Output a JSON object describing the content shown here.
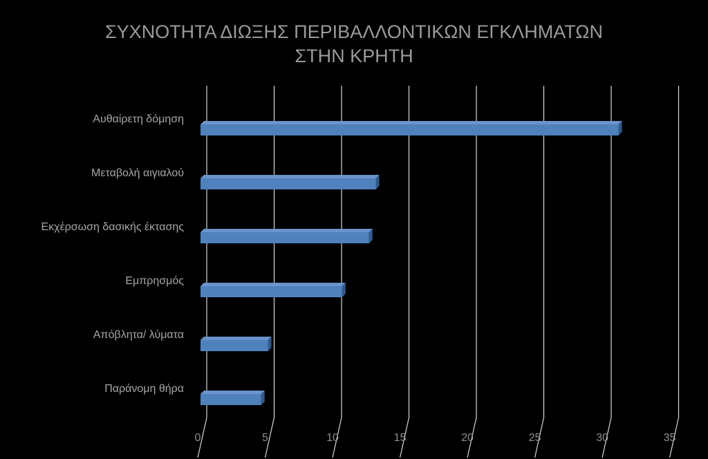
{
  "chart_data": {
    "type": "bar",
    "orientation": "horizontal",
    "style": "3d",
    "title": [
      "ΣΥΧΝΟΤΗΤΑ ΔΙΩΞΗΣ ΠΕΡΙΒΑΛΛΟΝΤΙΚΩΝ ΕΓΚΛΗΜΑΤΩΝ",
      "ΣΤΗΝ ΚΡΗΤΗ"
    ],
    "categories": [
      "Αυθαίρετη δόμηση",
      "Μεταβολή αιγιαλού",
      "Εκχέρσωση δασικής έκτασης",
      "Εμπρησμός",
      "Απόβλητα/ λύματα",
      "Παράνομη θήρα"
    ],
    "values": [
      31,
      13,
      12.5,
      10.5,
      5,
      4.5
    ],
    "xlim": [
      0,
      35
    ],
    "xticks": [
      "0",
      "5",
      "10",
      "15",
      "20",
      "25",
      "30",
      "35"
    ],
    "grid": true,
    "legend": "none",
    "colors": {
      "background": "#000000",
      "bar_front": "#4f81bd",
      "bar_top": "#6a95cc",
      "bar_side": "#34598a",
      "grid": "#d9d9d9",
      "text": "#a6a6a6"
    }
  }
}
